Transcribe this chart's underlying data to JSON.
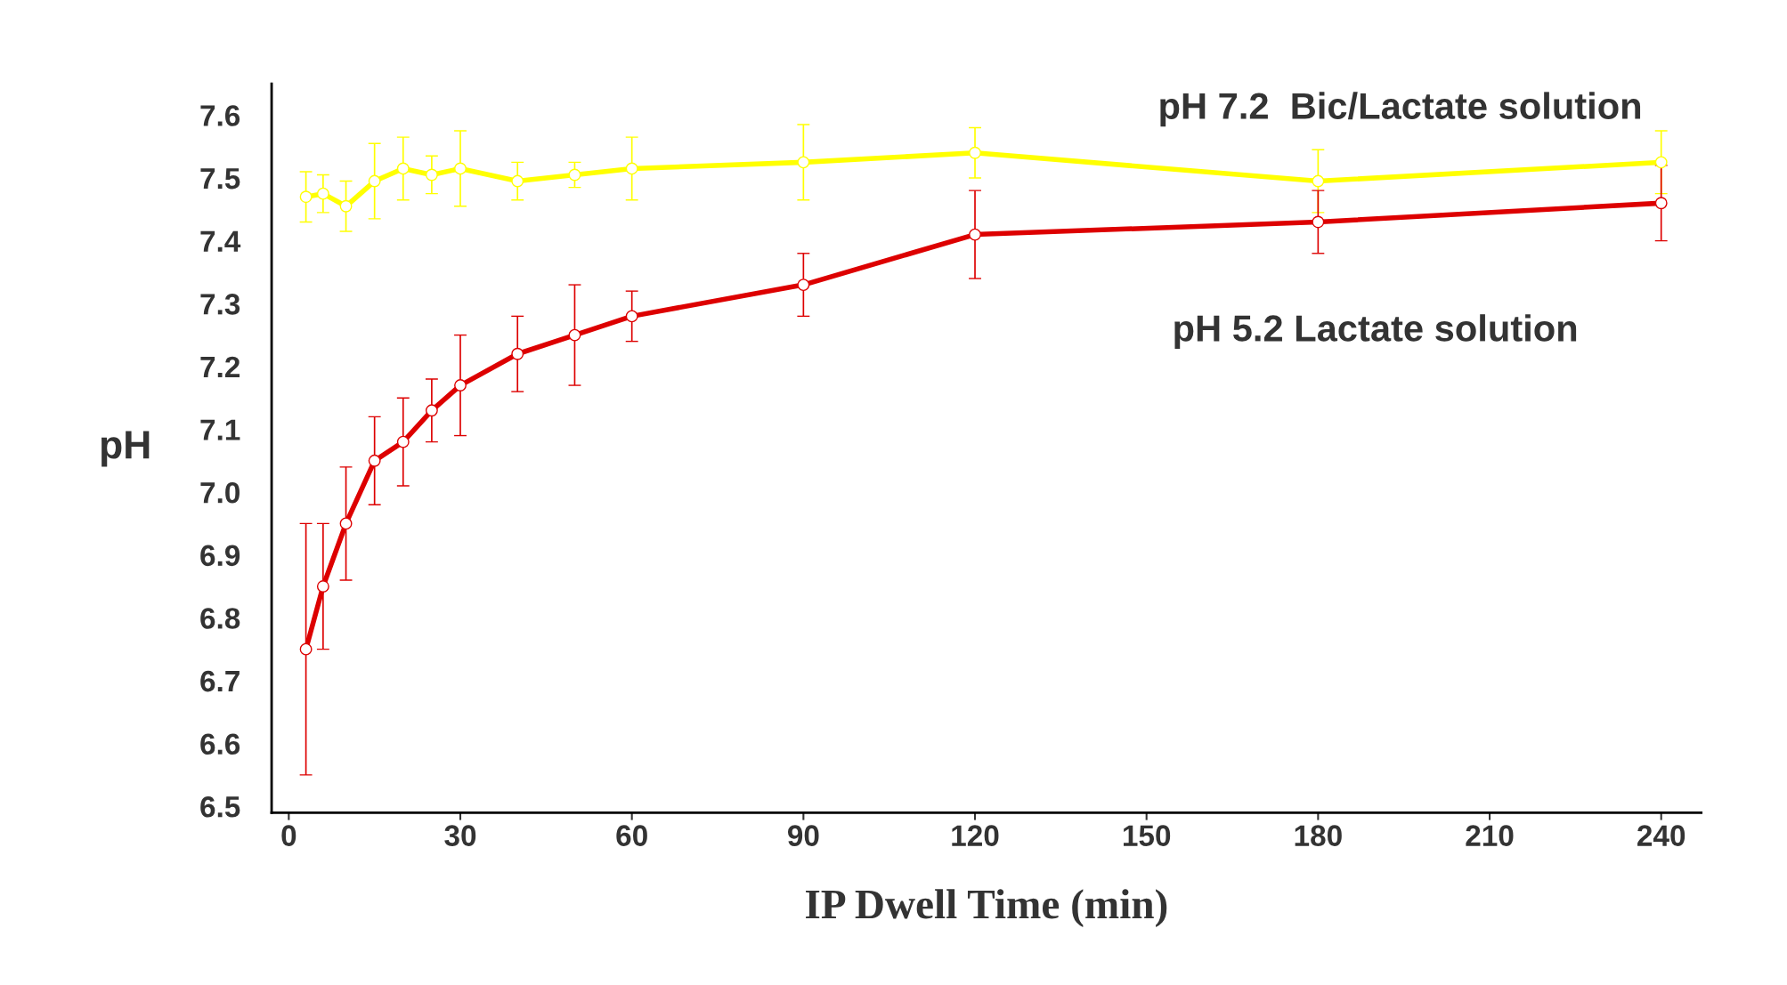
{
  "chart_data": {
    "type": "line",
    "xlabel": "IP Dwell Time (min)",
    "ylabel": "pH",
    "x": [
      3,
      6,
      10,
      15,
      20,
      25,
      30,
      40,
      50,
      60,
      90,
      120,
      180,
      240
    ],
    "series": [
      {
        "name": "pH 7.2  Bic/Lactate solution",
        "color": "#ffff00",
        "values": [
          7.47,
          7.475,
          7.455,
          7.495,
          7.515,
          7.505,
          7.515,
          7.495,
          7.505,
          7.515,
          7.525,
          7.54,
          7.495,
          7.525
        ],
        "errors": [
          0.04,
          0.03,
          0.04,
          0.06,
          0.05,
          0.03,
          0.06,
          0.03,
          0.02,
          0.05,
          0.06,
          0.04,
          0.05,
          0.05
        ]
      },
      {
        "name": "pH 5.2 Lactate solution",
        "color": "#dd0000",
        "values": [
          6.75,
          6.85,
          6.95,
          7.05,
          7.08,
          7.13,
          7.17,
          7.22,
          7.25,
          7.28,
          7.33,
          7.41,
          7.43,
          7.46
        ],
        "errors": [
          0.2,
          0.1,
          0.09,
          0.07,
          0.07,
          0.05,
          0.08,
          0.06,
          0.08,
          0.04,
          0.05,
          0.07,
          0.05,
          0.06
        ]
      }
    ],
    "xlim": [
      -3,
      247
    ],
    "xticks": [
      0,
      30,
      60,
      90,
      120,
      150,
      180,
      210,
      240
    ],
    "ylim": [
      6.49,
      7.65
    ],
    "yticks": [
      6.5,
      6.6,
      6.7,
      6.8,
      6.9,
      {
        "value": 7.0,
        "label": "7.0"
      },
      7.1,
      7.2,
      7.3,
      7.4,
      7.5,
      7.6
    ],
    "marker": "circle",
    "line_style": "solid",
    "grid": false,
    "legend": false
  }
}
